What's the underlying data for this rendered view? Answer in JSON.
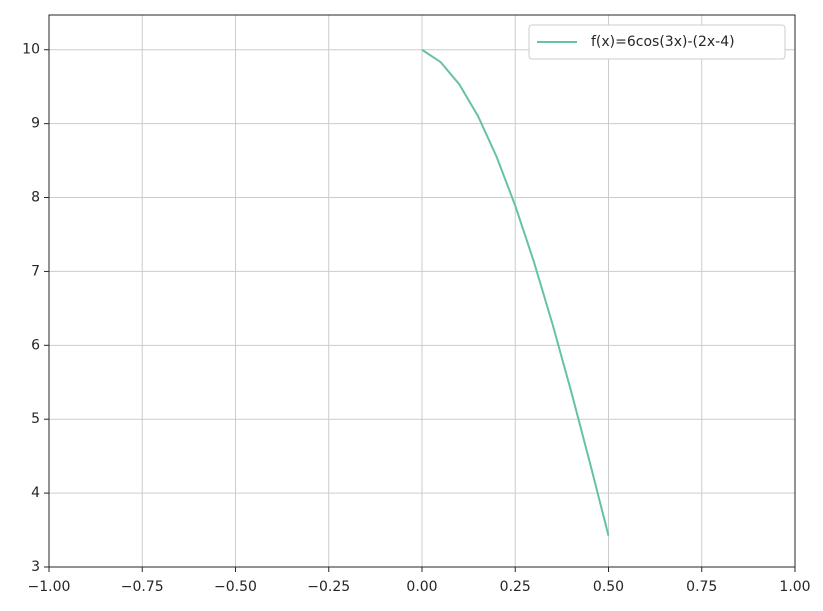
{
  "chart_data": {
    "type": "line",
    "x": [
      0,
      0.05,
      0.1,
      0.15,
      0.2,
      0.25,
      0.3,
      0.35,
      0.4,
      0.45,
      0.5
    ],
    "series": [
      {
        "name": "f(x)=6cos(3x)-(2x-4)",
        "color": "#66c2a5",
        "values": [
          10,
          9.833,
          9.532,
          9.103,
          8.552,
          7.89,
          7.13,
          6.285,
          5.374,
          4.414,
          3.424
        ]
      }
    ],
    "xlim": [
      -1,
      1
    ],
    "xticks": [
      {
        "value": -1,
        "label": "−1.00"
      },
      {
        "value": -0.75,
        "label": "−0.75"
      },
      {
        "value": -0.5,
        "label": "−0.50"
      },
      {
        "value": -0.25,
        "label": "−0.25"
      },
      {
        "value": 0,
        "label": "0.00"
      },
      0.25,
      {
        "value": 0.5,
        "label": "0.50"
      },
      0.75,
      {
        "value": 1,
        "label": "1.00"
      }
    ],
    "ylim": [
      3,
      10.47
    ],
    "yticks": [
      3,
      4,
      5,
      6,
      7,
      8,
      9,
      10
    ],
    "grid": true,
    "legend": "upper right"
  }
}
